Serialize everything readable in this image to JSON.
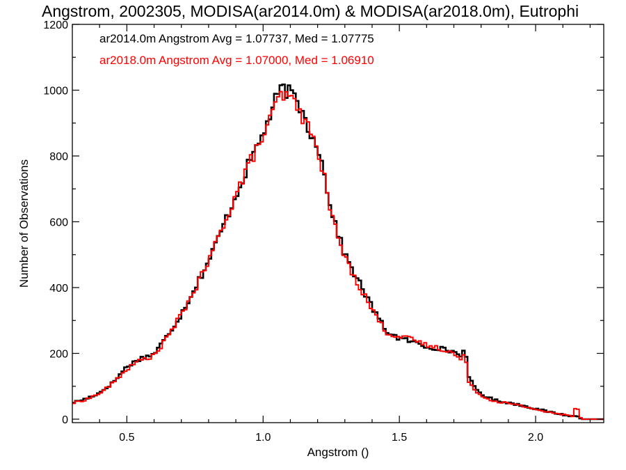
{
  "chart_data": {
    "type": "line",
    "title": "Angstrom, 2002305, MODISA(ar2014.0m) & MODISA(ar2018.0m), Eutrophi",
    "xlabel": "Angstrom ()",
    "ylabel": "Number of Observations",
    "xlim": [
      0.3,
      2.25
    ],
    "ylim": [
      0,
      1200
    ],
    "x_ticks": [
      "0.5",
      "1.0",
      "1.5",
      "2.0"
    ],
    "y_ticks": [
      "0",
      "200",
      "400",
      "600",
      "800",
      "1000",
      "1200"
    ],
    "grid": false,
    "legend_placement": "top-left",
    "annotations": [
      {
        "text": "ar2014.0m Angstrom Avg = 1.07737, Med = 1.07775",
        "color": "#000000"
      },
      {
        "text": "ar2018.0m Angstrom Avg = 1.07000, Med = 1.06910",
        "color": "#ff0000"
      }
    ],
    "series": [
      {
        "color": "#000000",
        "x": [
          0.3,
          0.35,
          0.4,
          0.45,
          0.5,
          0.55,
          0.6,
          0.65,
          0.7,
          0.75,
          0.8,
          0.85,
          0.9,
          0.95,
          1.0,
          1.03,
          1.05,
          1.07,
          1.1,
          1.13,
          1.16,
          1.18,
          1.2,
          1.22,
          1.25,
          1.28,
          1.3,
          1.35,
          1.4,
          1.45,
          1.5,
          1.55,
          1.6,
          1.65,
          1.7,
          1.73,
          1.74,
          1.75,
          1.78,
          1.8,
          1.85,
          1.9,
          1.95,
          2.0,
          2.05,
          2.1,
          2.14,
          2.15,
          2.16,
          2.17,
          2.25
        ],
        "y": [
          50,
          62,
          80,
          112,
          160,
          185,
          198,
          255,
          320,
          400,
          480,
          580,
          680,
          780,
          870,
          930,
          980,
          1005,
          990,
          960,
          900,
          860,
          840,
          760,
          640,
          550,
          500,
          420,
          340,
          270,
          245,
          235,
          220,
          215,
          205,
          190,
          240,
          130,
          95,
          75,
          58,
          50,
          42,
          32,
          22,
          14,
          8,
          10,
          5,
          0,
          0
        ]
      },
      {
        "color": "#ff0000",
        "x": [
          0.3,
          0.35,
          0.4,
          0.45,
          0.5,
          0.55,
          0.6,
          0.65,
          0.7,
          0.75,
          0.8,
          0.85,
          0.9,
          0.95,
          1.0,
          1.03,
          1.05,
          1.07,
          1.1,
          1.13,
          1.16,
          1.18,
          1.2,
          1.22,
          1.25,
          1.28,
          1.3,
          1.35,
          1.4,
          1.45,
          1.5,
          1.55,
          1.6,
          1.65,
          1.7,
          1.73,
          1.74,
          1.75,
          1.78,
          1.8,
          1.85,
          1.9,
          1.95,
          2.0,
          2.05,
          2.1,
          2.14,
          2.15,
          2.16,
          2.17,
          2.25
        ],
        "y": [
          48,
          60,
          78,
          110,
          152,
          180,
          192,
          250,
          318,
          395,
          478,
          582,
          682,
          778,
          860,
          915,
          965,
          985,
          975,
          945,
          895,
          855,
          830,
          750,
          625,
          540,
          490,
          410,
          335,
          265,
          250,
          242,
          225,
          215,
          200,
          175,
          215,
          120,
          88,
          70,
          55,
          48,
          40,
          30,
          20,
          14,
          10,
          55,
          8,
          0,
          0
        ]
      }
    ]
  }
}
